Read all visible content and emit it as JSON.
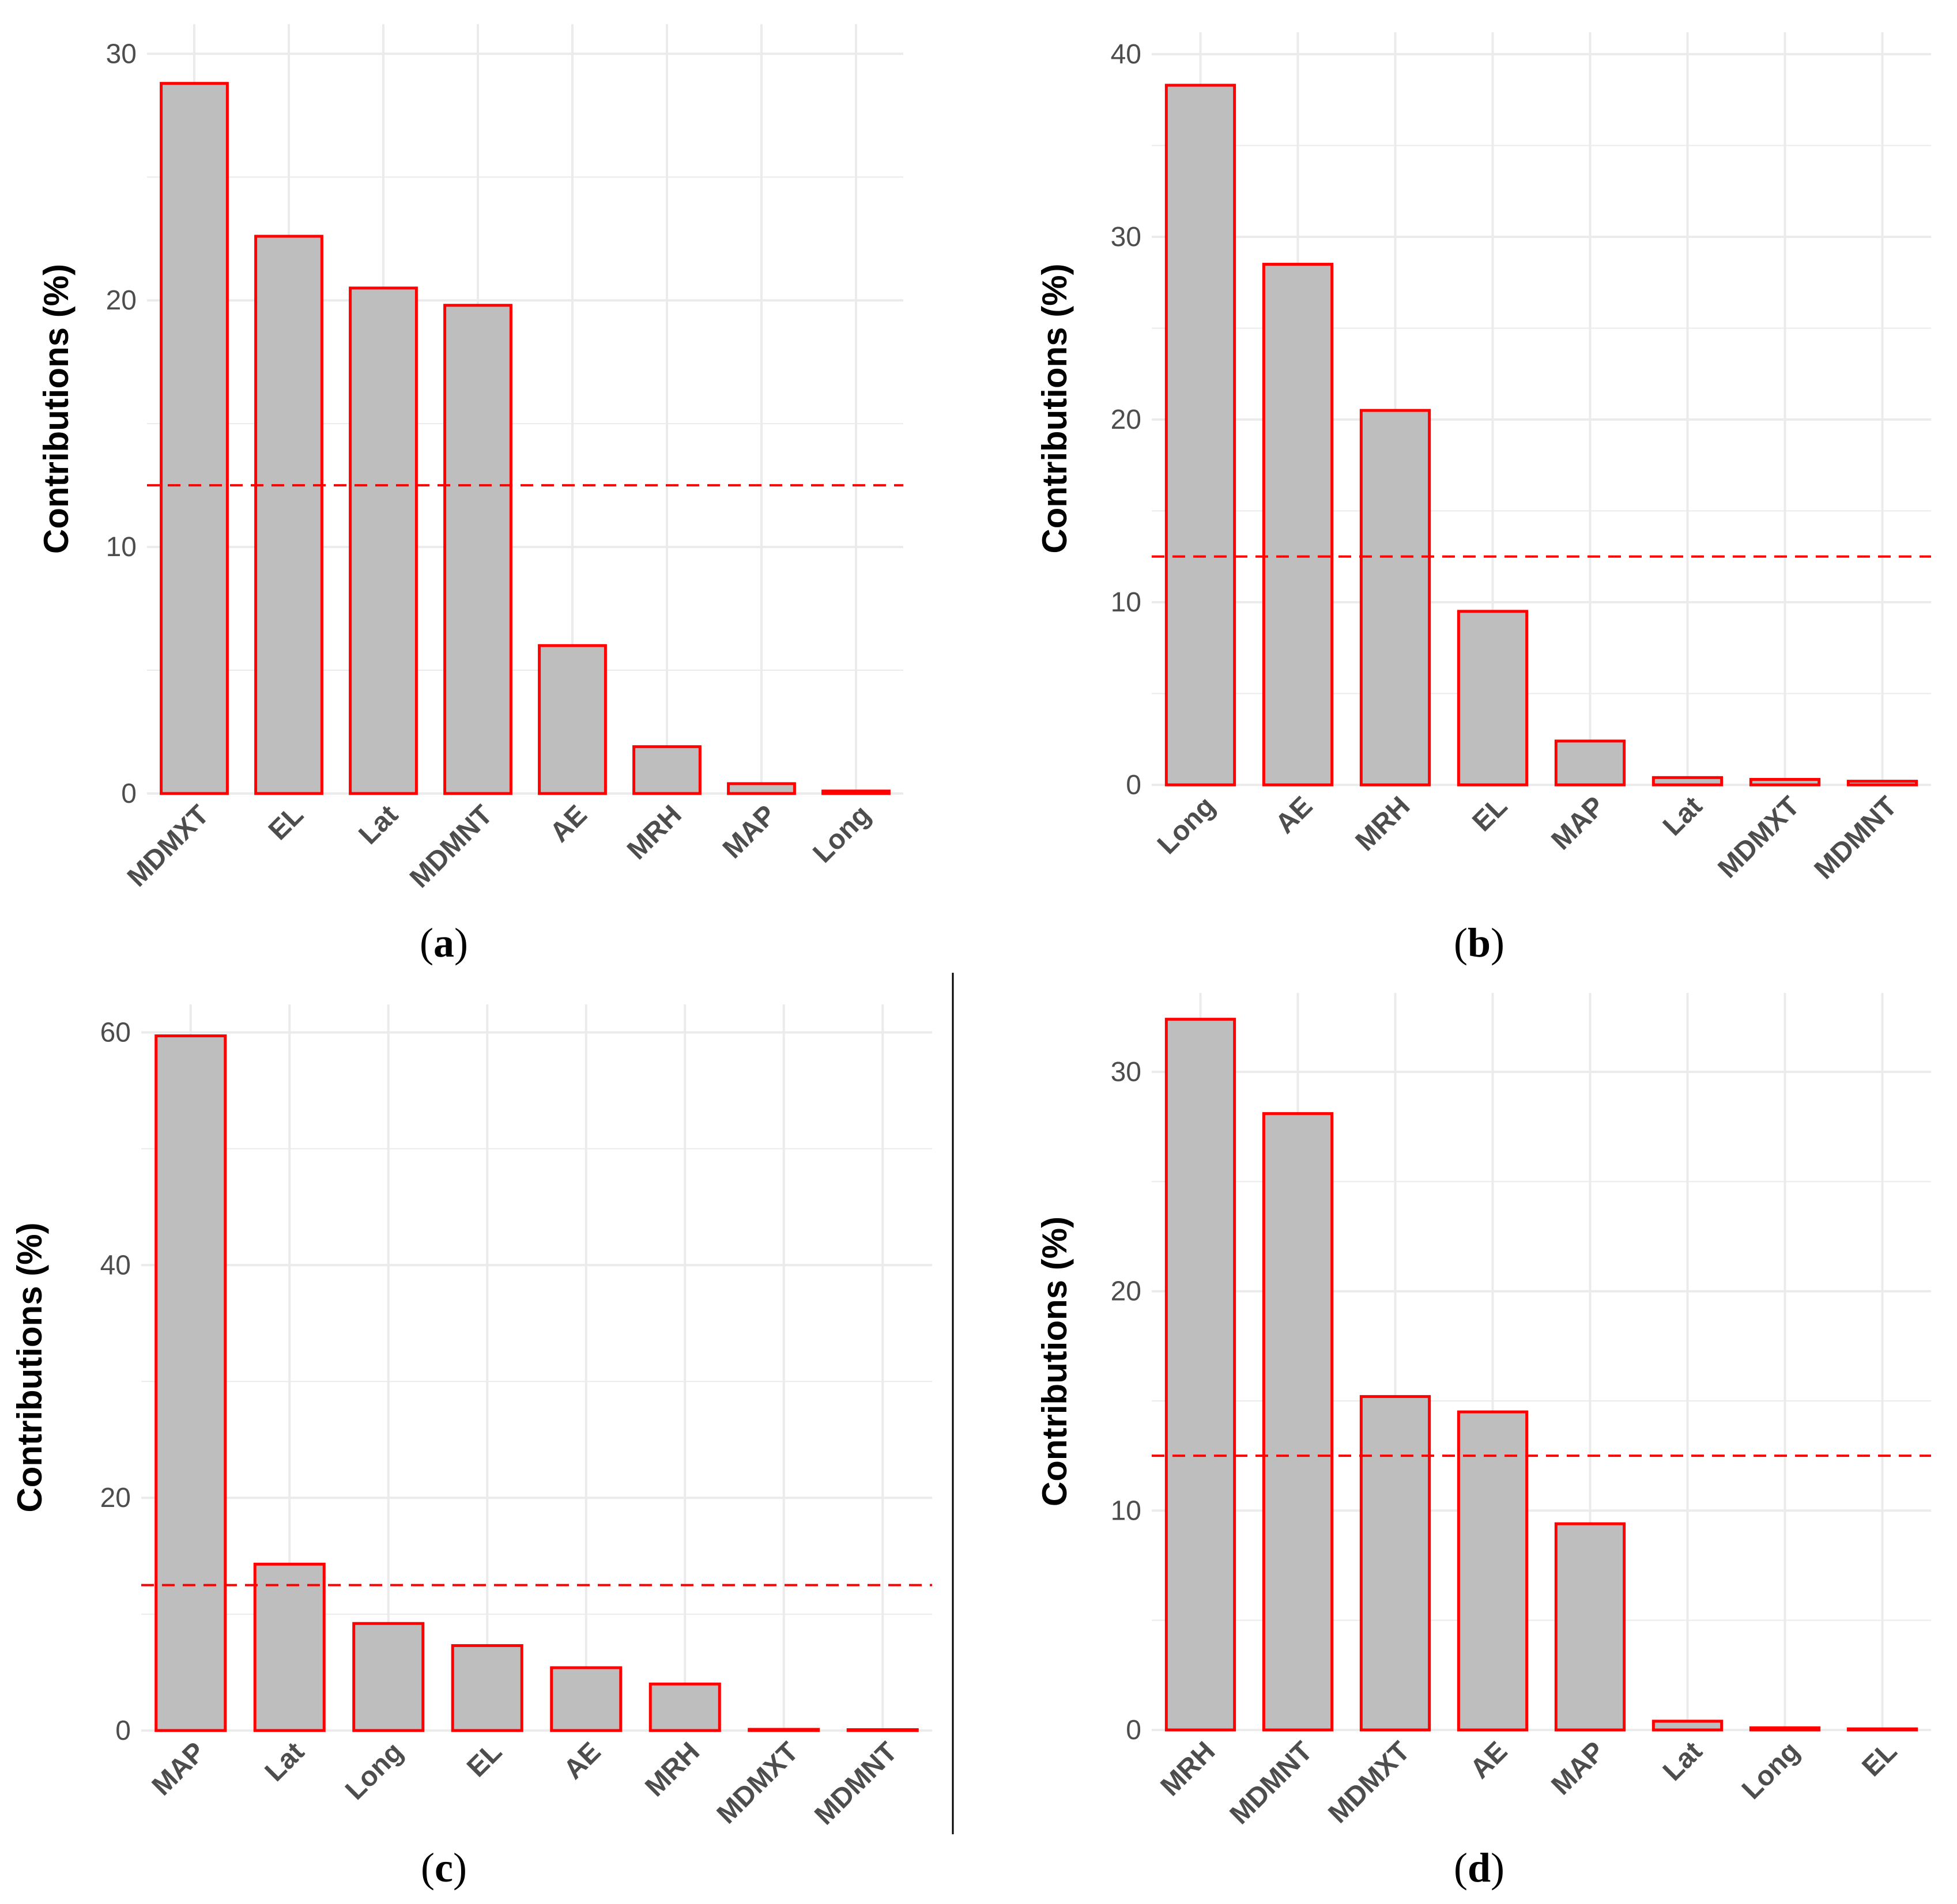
{
  "style": {
    "bar_fill": "#bebebe",
    "bar_stroke": "#ff0000",
    "reference_line_color": "#ff0000",
    "grid_color": "#ebebeb",
    "separator_color": "#000000"
  },
  "chart_data": [
    {
      "type": "bar",
      "panel_label": "a",
      "title": "",
      "xlabel": "",
      "ylabel": "Contributions (%)",
      "categories": [
        "MDMXT",
        "EL",
        "Lat",
        "MDMNT",
        "AE",
        "MRH",
        "MAP",
        "Long"
      ],
      "values": [
        28.8,
        22.6,
        20.5,
        19.8,
        6.0,
        1.9,
        0.4,
        0.1
      ],
      "reference_line": 12.5,
      "ylim": [
        0,
        30
      ],
      "yticks": [
        0,
        10,
        20,
        30
      ],
      "grid": true
    },
    {
      "type": "bar",
      "panel_label": "b",
      "title": "",
      "xlabel": "",
      "ylabel": "Contributions (%)",
      "categories": [
        "Long",
        "AE",
        "MRH",
        "EL",
        "MAP",
        "Lat",
        "MDMXT",
        "MDMNT"
      ],
      "values": [
        38.3,
        28.5,
        20.5,
        9.5,
        2.4,
        0.4,
        0.3,
        0.2
      ],
      "reference_line": 12.5,
      "ylim": [
        0,
        40
      ],
      "yticks": [
        0,
        10,
        20,
        30,
        40
      ],
      "grid": true
    },
    {
      "type": "bar",
      "panel_label": "c",
      "title": "",
      "xlabel": "",
      "ylabel": "Contributions (%)",
      "categories": [
        "MAP",
        "Lat",
        "Long",
        "EL",
        "AE",
        "MRH",
        "MDMXT",
        "MDMNT"
      ],
      "values": [
        59.7,
        14.3,
        9.2,
        7.3,
        5.4,
        4.0,
        0.1,
        0.05
      ],
      "reference_line": 12.5,
      "ylim": [
        0,
        60
      ],
      "yticks": [
        0,
        20,
        40,
        60
      ],
      "grid": true
    },
    {
      "type": "bar",
      "panel_label": "d",
      "title": "",
      "xlabel": "",
      "ylabel": "Contributions (%)",
      "categories": [
        "MRH",
        "MDMNT",
        "MDMXT",
        "AE",
        "MAP",
        "Lat",
        "Long",
        "EL"
      ],
      "values": [
        32.4,
        28.1,
        15.2,
        14.5,
        9.4,
        0.4,
        0.1,
        0.05
      ],
      "reference_line": 12.5,
      "ylim": [
        0,
        30
      ],
      "yticks": [
        0,
        10,
        20,
        30
      ],
      "grid": true
    }
  ]
}
